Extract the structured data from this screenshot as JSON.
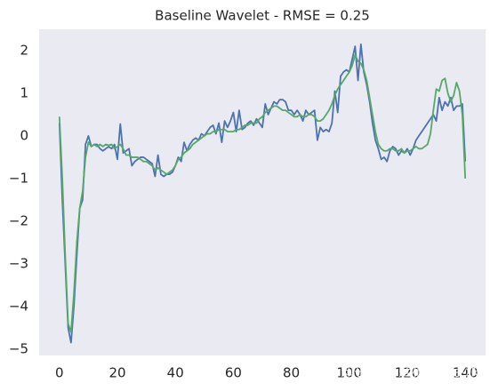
{
  "chart_data": {
    "type": "line",
    "title": "Baseline Wavelet - RMSE = 0.25",
    "watermark": "知乎 @哥廷根数学学派",
    "x": [
      0,
      1,
      2,
      3,
      4,
      5,
      6,
      7,
      8,
      9,
      10,
      11,
      12,
      13,
      14,
      15,
      16,
      17,
      18,
      19,
      20,
      21,
      22,
      23,
      24,
      25,
      26,
      27,
      28,
      29,
      30,
      31,
      32,
      33,
      34,
      35,
      36,
      37,
      38,
      39,
      40,
      41,
      42,
      43,
      44,
      45,
      46,
      47,
      48,
      49,
      50,
      51,
      52,
      53,
      54,
      55,
      56,
      57,
      58,
      59,
      60,
      61,
      62,
      63,
      64,
      65,
      66,
      67,
      68,
      69,
      70,
      71,
      72,
      73,
      74,
      75,
      76,
      77,
      78,
      79,
      80,
      81,
      82,
      83,
      84,
      85,
      86,
      87,
      88,
      89,
      90,
      91,
      92,
      93,
      94,
      95,
      96,
      97,
      98,
      99,
      100,
      101,
      102,
      103,
      104,
      105,
      106,
      107,
      108,
      109,
      110,
      111,
      112,
      113,
      114,
      115,
      116,
      117,
      118,
      119,
      120,
      121,
      122,
      123,
      124,
      125,
      126,
      127,
      128,
      129,
      130,
      131,
      132,
      133,
      134,
      135,
      136,
      137,
      138,
      139,
      140
    ],
    "series": [
      {
        "color": "#4c72b0",
        "values": [
          0.3,
          -1.5,
          -3.0,
          -4.5,
          -4.85,
          -4.0,
          -2.8,
          -1.7,
          -1.5,
          -0.2,
          0.0,
          -0.25,
          -0.2,
          -0.2,
          -0.3,
          -0.35,
          -0.3,
          -0.25,
          -0.3,
          -0.2,
          -0.55,
          0.28,
          -0.4,
          -0.35,
          -0.3,
          -0.7,
          -0.6,
          -0.55,
          -0.5,
          -0.5,
          -0.55,
          -0.6,
          -0.65,
          -0.95,
          -0.45,
          -0.9,
          -0.95,
          -0.9,
          -0.9,
          -0.85,
          -0.7,
          -0.5,
          -0.6,
          -0.15,
          -0.35,
          -0.2,
          -0.1,
          -0.05,
          -0.1,
          0.05,
          0.0,
          0.1,
          0.2,
          0.25,
          0.05,
          0.3,
          -0.15,
          0.35,
          0.2,
          0.35,
          0.55,
          0.1,
          0.6,
          0.15,
          0.2,
          0.3,
          0.35,
          0.25,
          0.4,
          0.3,
          0.2,
          0.75,
          0.5,
          0.65,
          0.8,
          0.75,
          0.85,
          0.85,
          0.8,
          0.6,
          0.6,
          0.5,
          0.6,
          0.5,
          0.35,
          0.6,
          0.5,
          0.55,
          0.6,
          -0.1,
          0.2,
          0.1,
          0.15,
          0.1,
          0.3,
          1.05,
          0.55,
          1.4,
          1.5,
          1.55,
          1.5,
          1.8,
          2.1,
          1.3,
          2.15,
          1.5,
          1.2,
          0.8,
          0.3,
          -0.1,
          -0.3,
          -0.55,
          -0.5,
          -0.6,
          -0.35,
          -0.25,
          -0.3,
          -0.45,
          -0.35,
          -0.4,
          -0.3,
          -0.45,
          -0.3,
          -0.1,
          0.0,
          0.1,
          0.2,
          0.3,
          0.4,
          0.5,
          0.35,
          0.9,
          0.6,
          0.8,
          0.7,
          0.9,
          0.6,
          0.7,
          0.7,
          0.75,
          -0.6
        ]
      },
      {
        "color": "#55a868",
        "values": [
          0.45,
          -1.0,
          -2.8,
          -4.4,
          -4.6,
          -3.7,
          -2.5,
          -1.7,
          -1.3,
          -0.5,
          -0.15,
          -0.25,
          -0.2,
          -0.25,
          -0.2,
          -0.25,
          -0.2,
          -0.22,
          -0.2,
          -0.3,
          -0.25,
          -0.2,
          -0.3,
          -0.45,
          -0.45,
          -0.5,
          -0.5,
          -0.5,
          -0.55,
          -0.6,
          -0.6,
          -0.65,
          -0.7,
          -0.8,
          -0.75,
          -0.8,
          -0.85,
          -0.9,
          -0.85,
          -0.8,
          -0.7,
          -0.55,
          -0.5,
          -0.4,
          -0.35,
          -0.3,
          -0.2,
          -0.15,
          -0.1,
          -0.05,
          0.0,
          0.05,
          0.05,
          0.1,
          0.1,
          0.15,
          0.15,
          0.15,
          0.1,
          0.1,
          0.1,
          0.15,
          0.15,
          0.2,
          0.25,
          0.25,
          0.3,
          0.3,
          0.3,
          0.4,
          0.45,
          0.55,
          0.6,
          0.65,
          0.7,
          0.7,
          0.65,
          0.6,
          0.6,
          0.55,
          0.5,
          0.45,
          0.45,
          0.5,
          0.45,
          0.45,
          0.5,
          0.5,
          0.45,
          0.35,
          0.35,
          0.4,
          0.5,
          0.6,
          0.75,
          0.95,
          1.1,
          1.2,
          1.3,
          1.4,
          1.5,
          1.65,
          1.9,
          1.75,
          1.7,
          1.55,
          1.3,
          0.9,
          0.5,
          0.1,
          -0.2,
          -0.3,
          -0.35,
          -0.35,
          -0.3,
          -0.3,
          -0.35,
          -0.35,
          -0.3,
          -0.4,
          -0.35,
          -0.35,
          -0.3,
          -0.25,
          -0.3,
          -0.3,
          -0.25,
          -0.2,
          0.05,
          0.6,
          1.1,
          1.05,
          1.3,
          1.35,
          1.0,
          0.8,
          0.95,
          1.25,
          1.05,
          0.5,
          -1.0
        ]
      }
    ],
    "xlim": [
      -7,
      147
    ],
    "ylim": [
      -5.15,
      2.5
    ],
    "xticks": [
      0,
      20,
      40,
      60,
      80,
      100,
      120,
      140
    ],
    "yticks": [
      {
        "value": -5,
        "label": "−5"
      },
      {
        "value": -4,
        "label": "−4"
      },
      {
        "value": -3,
        "label": "−3"
      },
      {
        "value": -2,
        "label": "−2"
      },
      {
        "value": -1,
        "label": "−1"
      },
      0,
      1,
      2
    ],
    "grid": false,
    "background": "#eaeaf2"
  }
}
